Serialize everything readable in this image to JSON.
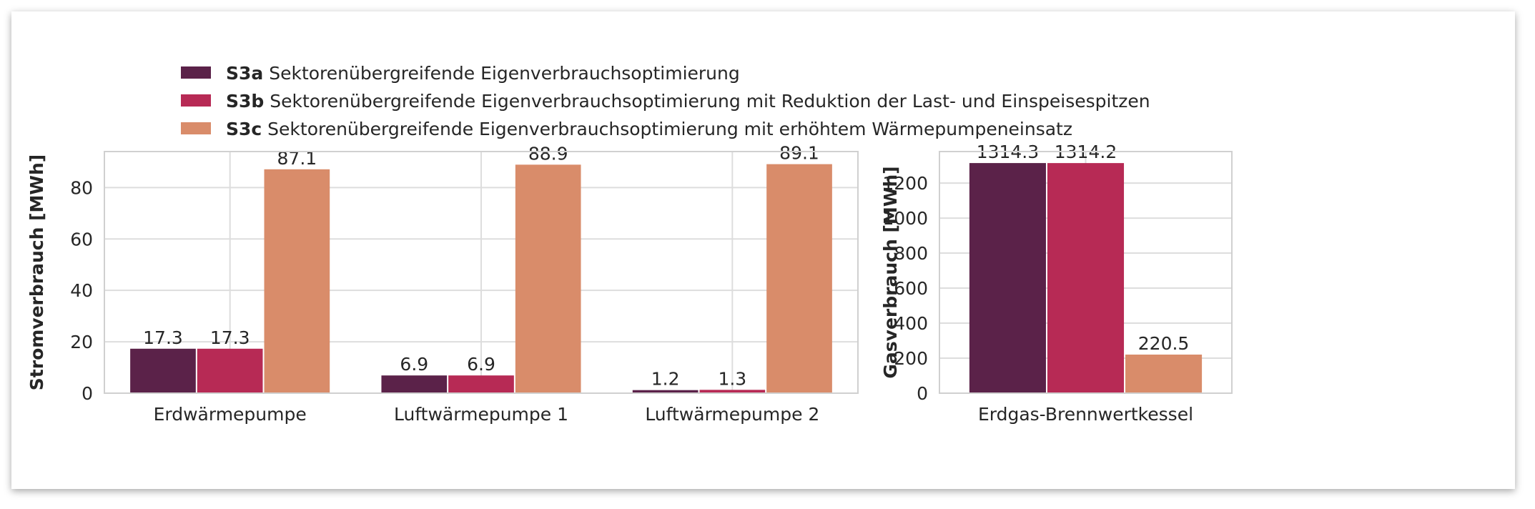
{
  "legend": {
    "items": [
      {
        "name": "S3a",
        "text": "Sektorenübergreifende Eigenverbrauchsoptimierung",
        "color": "#5B2249"
      },
      {
        "name": "S3b",
        "text": "Sektorenübergreifende Eigenverbrauchsoptimierung mit Reduktion der Last- und Einspeisespitzen",
        "color": "#B72A55"
      },
      {
        "name": "S3c",
        "text": "Sektorenübergreifende Eigenverbrauchsoptimierung mit erhöhtem Wärmepumpeneinsatz",
        "color": "#D98C6A"
      }
    ]
  },
  "chart_data": [
    {
      "type": "bar",
      "categories": [
        "Erdwärmepumpe",
        "Luftwärmepumpe 1",
        "Luftwärmepumpe 2"
      ],
      "series": [
        {
          "name": "S3a",
          "values": [
            17.3,
            6.9,
            1.2
          ],
          "labels": [
            "17.3",
            "6.9",
            "1.2"
          ]
        },
        {
          "name": "S3b",
          "values": [
            17.3,
            6.9,
            1.3
          ],
          "labels": [
            "17.3",
            "6.9",
            "1.3"
          ]
        },
        {
          "name": "S3c",
          "values": [
            87.1,
            88.9,
            89.1
          ],
          "labels": [
            "87.1",
            "88.9",
            "89.1"
          ]
        }
      ],
      "ylabel": "Stromverbrauch [MWh]",
      "ylim": [
        0,
        94
      ],
      "yticks": [
        0,
        20,
        40,
        60,
        80
      ],
      "grid": true,
      "legend": "top"
    },
    {
      "type": "bar",
      "categories": [
        "Erdgas-Brennwertkessel"
      ],
      "series": [
        {
          "name": "S3a",
          "values": [
            1314.3
          ],
          "labels": [
            "1314.3"
          ]
        },
        {
          "name": "S3b",
          "values": [
            1314.2
          ],
          "labels": [
            "1314.2"
          ]
        },
        {
          "name": "S3c",
          "values": [
            220.5
          ],
          "labels": [
            "220.5"
          ]
        }
      ],
      "ylabel": "Gasverbrauch [MWh]",
      "ylim": [
        0,
        1380
      ],
      "yticks": [
        0,
        200,
        400,
        600,
        800,
        1000,
        1200
      ],
      "grid": true
    }
  ]
}
